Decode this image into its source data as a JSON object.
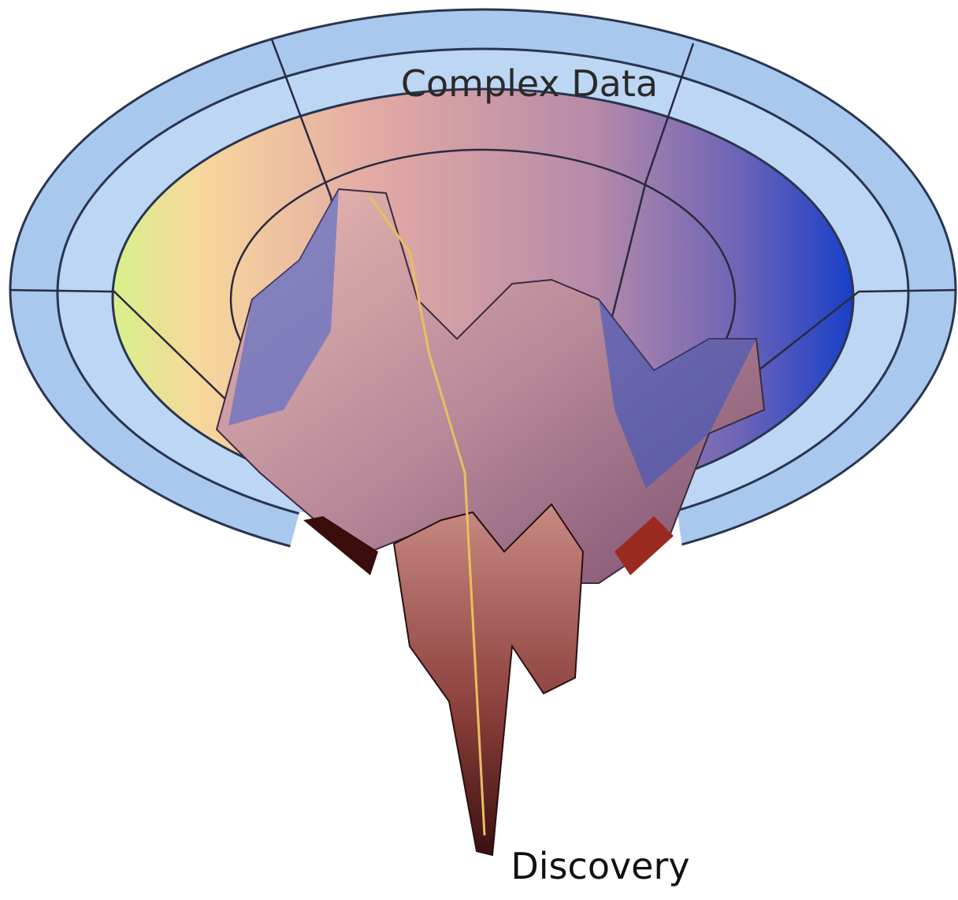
{
  "labels": {
    "top": "Complex Data",
    "bottom": "Discovery"
  }
}
